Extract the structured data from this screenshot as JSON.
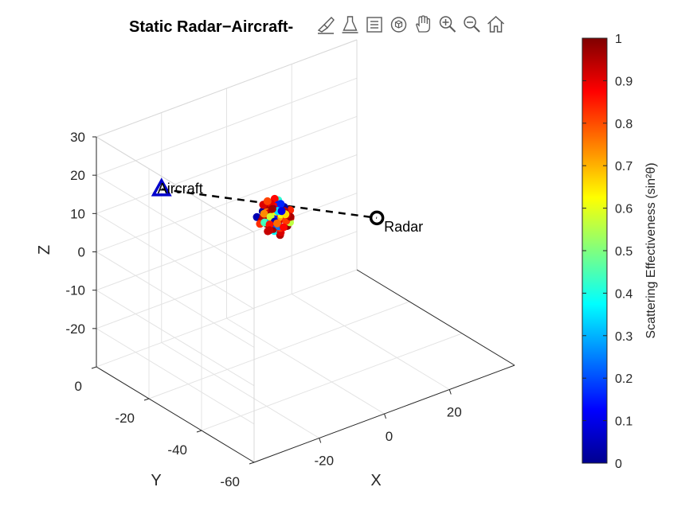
{
  "toolbar": {
    "icons": [
      "brush-icon",
      "data-cursor-icon",
      "legend-icon",
      "rotate-3d-icon",
      "pan-icon",
      "zoom-in-icon",
      "zoom-out-icon",
      "home-icon"
    ]
  },
  "chart_data": {
    "type": "scatter3d",
    "title": "Static Radar−Aircraft-",
    "xlabel": "X",
    "ylabel": "Y",
    "zlabel": "Z",
    "xlim": [
      -40,
      40
    ],
    "ylim": [
      -60,
      0
    ],
    "zlim": [
      -30,
      30
    ],
    "xticks": [
      -20,
      0,
      20
    ],
    "xtick_labels": [
      "-20",
      "0",
      "20"
    ],
    "yticks": [
      -60,
      -40,
      -20,
      0
    ],
    "ytick_labels": [
      "-60",
      "-40",
      "-20",
      "0"
    ],
    "zticks": [
      -20,
      -10,
      0,
      10,
      20,
      30
    ],
    "ztick_labels": [
      "-20",
      "-10",
      "0",
      "10",
      "20",
      "30"
    ],
    "grid": true,
    "colormap": "jet",
    "colorbar": {
      "label": "Scattering Effectiveness (sin²θ)",
      "range": [
        0,
        1
      ],
      "ticks": [
        0,
        0.1,
        0.2,
        0.3,
        0.4,
        0.5,
        0.6,
        0.7,
        0.8,
        0.9,
        1
      ],
      "tick_labels": [
        "0",
        "0.1",
        "0.2",
        "0.3",
        "0.4",
        "0.5",
        "0.6",
        "0.7",
        "0.8",
        "0.9",
        "1"
      ]
    },
    "aircraft": {
      "label": "Aircraft",
      "x": -20,
      "y": 0,
      "z": 10,
      "color": "#0000cc"
    },
    "radar": {
      "label": "Radar",
      "x": 30,
      "y": -20,
      "z": -5,
      "color": "#000000"
    },
    "line_of_sight": {
      "style": "dashed",
      "color": "#000000"
    },
    "scatter_points": [
      [
        8.6,
        -12.6,
        -0.6,
        0.94
      ],
      [
        5.0,
        -13.6,
        -2.4,
        0.58
      ],
      [
        10.4,
        -11.4,
        -2.4,
        0.86
      ],
      [
        6.4,
        -14.6,
        0.5,
        0.97
      ],
      [
        1.8,
        -11.7,
        0.3,
        0.07
      ],
      [
        7.5,
        -8.6,
        -0.6,
        0.17
      ],
      [
        8.5,
        -9.4,
        -3.3,
        0.78
      ],
      [
        4.3,
        -10.4,
        0.4,
        0.96
      ],
      [
        9.8,
        -11.3,
        -1.6,
        0.31
      ],
      [
        7.1,
        -14.0,
        1.4,
        0.88
      ],
      [
        2.2,
        -11.0,
        1.8,
        0.03
      ],
      [
        4.6,
        -10.3,
        -1.3,
        0.56
      ],
      [
        5.4,
        -10.6,
        -0.2,
        0.25
      ],
      [
        3.4,
        -14.2,
        -1.1,
        0.86
      ],
      [
        6.8,
        -11.5,
        -0.4,
        0.93
      ],
      [
        4.8,
        -14.4,
        -3.8,
        0.95
      ],
      [
        6.6,
        -7.3,
        1.3,
        0.04
      ],
      [
        4.0,
        -10.4,
        -1.2,
        0.26
      ],
      [
        4.8,
        -9.7,
        0.6,
        0.78
      ],
      [
        2.5,
        -12.8,
        0.6,
        0.57
      ],
      [
        5.2,
        -11.1,
        -0.7,
        0.13
      ],
      [
        6.1,
        -10.3,
        -4.7,
        0.95
      ],
      [
        7.7,
        -8.7,
        -4.8,
        0.51
      ],
      [
        4.1,
        -11.0,
        1.6,
        0.67
      ],
      [
        4.9,
        -11.8,
        2.6,
        0.96
      ],
      [
        8.6,
        -9.6,
        0.0,
        0.87
      ],
      [
        7.2,
        -11.2,
        -3.6,
        0.83
      ],
      [
        6.9,
        -11.8,
        -1.0,
        0.55
      ],
      [
        5.9,
        -10.0,
        -0.5,
        0.98
      ],
      [
        8.8,
        -8.9,
        -1.5,
        0.1
      ],
      [
        7.4,
        -6.8,
        -4.9,
        0.43
      ],
      [
        5.5,
        -8.6,
        1.1,
        0.94
      ],
      [
        1.3,
        -9.9,
        0.1,
        0.05
      ],
      [
        1.8,
        -13.0,
        -0.5,
        0.96
      ],
      [
        6.8,
        -11.2,
        3.3,
        0.42
      ],
      [
        6.4,
        -9.1,
        0.2,
        0.84
      ],
      [
        4.5,
        -12.3,
        1.1,
        0.93
      ],
      [
        6.0,
        -8.9,
        -2.6,
        0.32
      ],
      [
        5.7,
        -11.0,
        0.1,
        0.78
      ],
      [
        6.3,
        -11.7,
        -3.0,
        0.05
      ],
      [
        5.1,
        -9.9,
        2.0,
        0.95
      ],
      [
        3.7,
        -11.2,
        -0.2,
        0.48
      ],
      [
        10.3,
        -11.4,
        -0.3,
        0.84
      ],
      [
        7.5,
        -10.7,
        0.5,
        0.72
      ],
      [
        3.6,
        -13.0,
        0.6,
        0.04
      ],
      [
        8.6,
        -12.4,
        -3.5,
        0.99
      ],
      [
        2.8,
        -12.8,
        -0.7,
        0.25
      ],
      [
        5.7,
        -11.2,
        4.0,
        0.87
      ],
      [
        5.9,
        -10.4,
        1.1,
        0.14
      ],
      [
        7.3,
        -9.4,
        -2.6,
        0.68
      ],
      [
        5.6,
        -10.9,
        -3.6,
        0.87
      ],
      [
        8.3,
        -9.8,
        -2.9,
        0.93
      ],
      [
        8.7,
        -13.3,
        -2.2,
        0.56
      ],
      [
        3.3,
        -9.2,
        -1.8,
        0.96
      ],
      [
        4.1,
        -14.2,
        2.0,
        0.87
      ],
      [
        7.8,
        -10.8,
        -0.8,
        0.28
      ],
      [
        7.1,
        -10.9,
        1.9,
        0.15
      ],
      [
        4.7,
        -9.3,
        -1.7,
        0.88
      ],
      [
        3.4,
        -11.1,
        1.2,
        0.76
      ],
      [
        8.7,
        -11.1,
        0.9,
        0.04
      ],
      [
        5.0,
        -13.6,
        0.2,
        0.95
      ],
      [
        5.8,
        -10.6,
        -1.3,
        0.34
      ],
      [
        5.1,
        -9.8,
        -0.1,
        0.91
      ],
      [
        9.8,
        -10.3,
        -3.0,
        0.25
      ],
      [
        6.8,
        -8.7,
        -1.5,
        0.89
      ],
      [
        2.6,
        -12.1,
        0.8,
        0.42
      ],
      [
        2.9,
        -9.1,
        -2.5,
        0.83
      ],
      [
        3.2,
        -12.3,
        0.9,
        0.97
      ],
      [
        4.9,
        -9.8,
        -2.4,
        0.65
      ],
      [
        4.6,
        -14.0,
        0.3,
        0.21
      ],
      [
        4.2,
        -8.7,
        1.9,
        0.91
      ],
      [
        5.3,
        -11.7,
        1.8,
        0.06
      ],
      [
        6.2,
        -12.6,
        -0.3,
        0.86
      ],
      [
        4.0,
        -12.2,
        -0.3,
        0.15
      ],
      [
        5.3,
        -13.9,
        0.0,
        0.91
      ],
      [
        7.7,
        -10.4,
        -1.8,
        0.72
      ],
      [
        1.9,
        -11.6,
        0.7,
        0.94
      ],
      [
        3.4,
        -13.9,
        -2.5,
        0.38
      ],
      [
        7.0,
        -10.0,
        1.0,
        0.88
      ],
      [
        8.1,
        -10.6,
        -1.0,
        0.61
      ],
      [
        6.3,
        -11.8,
        1.0,
        0.26
      ],
      [
        5.6,
        -10.8,
        -4.0,
        0.96
      ],
      [
        8.6,
        -12.0,
        -2.3,
        0.82
      ],
      [
        4.8,
        -12.2,
        -1.7,
        0.74
      ],
      [
        7.4,
        -11.4,
        -5.2,
        0.91
      ],
      [
        1.3,
        -12.8,
        -0.1,
        0.44
      ],
      [
        4.2,
        -13.2,
        -1.6,
        0.98
      ],
      [
        6.1,
        -10.0,
        0.8,
        0.07
      ],
      [
        5.3,
        -11.4,
        -0.2,
        0.85
      ],
      [
        3.4,
        -12.6,
        -0.2,
        0.3
      ],
      [
        10.9,
        -10.8,
        -2.5,
        0.96
      ],
      [
        6.5,
        -9.8,
        -1.9,
        0.15
      ],
      [
        5.7,
        -11.6,
        0.9,
        0.62
      ],
      [
        9.4,
        -11.3,
        -1.3,
        0.92
      ],
      [
        4.1,
        -13.3,
        -1.1,
        0.2
      ],
      [
        6.8,
        -8.4,
        1.3,
        0.9
      ],
      [
        3.6,
        -9.8,
        0.2,
        0.74
      ],
      [
        5.7,
        -13.3,
        -2.7,
        0.83
      ],
      [
        7.3,
        -10.8,
        -3.8,
        0.24
      ],
      [
        2.8,
        -12.2,
        -3.1,
        0.93
      ],
      [
        5.9,
        -9.4,
        -1.5,
        0.58
      ],
      [
        6.6,
        -12.4,
        2.9,
        0.16
      ],
      [
        9.9,
        -9.8,
        -1.1,
        0.95
      ],
      [
        7.0,
        -9.6,
        -3.0,
        0.05
      ],
      [
        4.4,
        -10.9,
        -2.4,
        0.86
      ],
      [
        8.2,
        -12.2,
        -0.4,
        0.66
      ],
      [
        4.8,
        -9.6,
        3.0,
        0.81
      ],
      [
        3.8,
        -11.6,
        -3.4,
        0.93
      ],
      [
        6.8,
        -11.1,
        0.4,
        0.35
      ],
      [
        6.2,
        -9.7,
        0.6,
        0.97
      ],
      [
        5.6,
        -12.3,
        -1.9,
        0.77
      ],
      [
        6.7,
        -12.6,
        1.1,
        0.1
      ],
      [
        8.6,
        -11.0,
        -4.4,
        0.87
      ]
    ]
  }
}
